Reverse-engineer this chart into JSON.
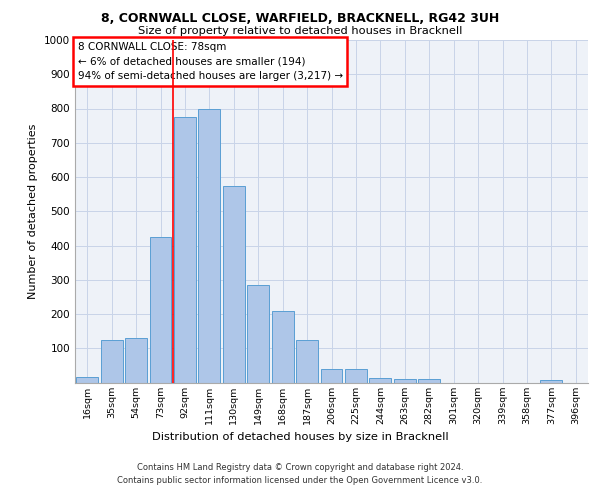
{
  "title_line1": "8, CORNWALL CLOSE, WARFIELD, BRACKNELL, RG42 3UH",
  "title_line2": "Size of property relative to detached houses in Bracknell",
  "xlabel": "Distribution of detached houses by size in Bracknell",
  "ylabel": "Number of detached properties",
  "categories": [
    "16sqm",
    "35sqm",
    "54sqm",
    "73sqm",
    "92sqm",
    "111sqm",
    "130sqm",
    "149sqm",
    "168sqm",
    "187sqm",
    "206sqm",
    "225sqm",
    "244sqm",
    "263sqm",
    "282sqm",
    "301sqm",
    "320sqm",
    "339sqm",
    "358sqm",
    "377sqm",
    "396sqm"
  ],
  "values": [
    15,
    125,
    130,
    425,
    775,
    800,
    575,
    285,
    210,
    125,
    40,
    40,
    12,
    10,
    10,
    0,
    0,
    0,
    0,
    8,
    0
  ],
  "bar_color": "#aec6e8",
  "bar_edge_color": "#5a9fd4",
  "grid_color": "#c8d4e8",
  "background_color": "#eef2f8",
  "vline_color": "red",
  "vline_x": 3.5,
  "annotation_text": "8 CORNWALL CLOSE: 78sqm\n← 6% of detached houses are smaller (194)\n94% of semi-detached houses are larger (3,217) →",
  "annotation_box_color": "white",
  "annotation_box_edge_color": "red",
  "ylim": [
    0,
    1000
  ],
  "yticks": [
    0,
    100,
    200,
    300,
    400,
    500,
    600,
    700,
    800,
    900,
    1000
  ],
  "footer_line1": "Contains HM Land Registry data © Crown copyright and database right 2024.",
  "footer_line2": "Contains public sector information licensed under the Open Government Licence v3.0."
}
